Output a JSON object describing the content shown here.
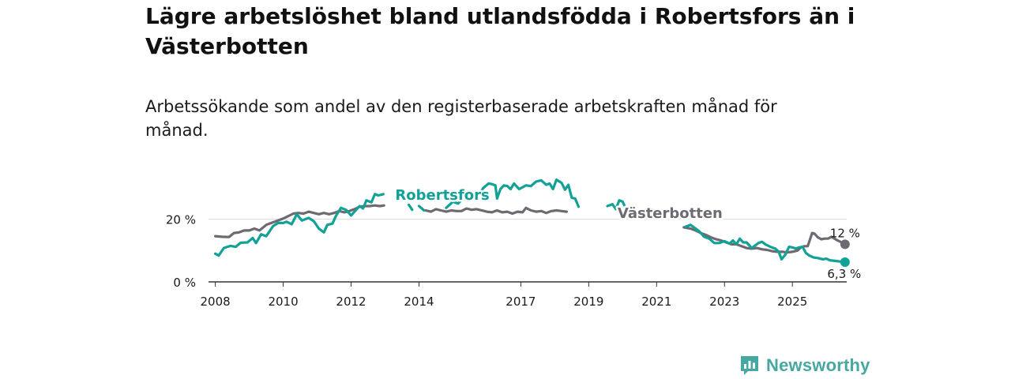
{
  "title": "Lägre arbetslöshet bland utlandsfödda i Robertsfors än i Västerbotten",
  "subtitle": "Arbetssökande som andel av den registerbaserade arbetskraften månad för månad.",
  "brand": {
    "name": "Newsworthy"
  },
  "colors": {
    "robertsfors": "#12a196",
    "vasterbotten": "#6f6a72",
    "grid": "#d9d9d9",
    "axis": "#333333",
    "text": "#1a1a1a"
  },
  "chart_data": {
    "type": "line",
    "title": "Lägre arbetslöshet bland utlandsfödda i Robertsfors än i Västerbotten",
    "subtitle": "Arbetssökande som andel av den registerbaserade arbetskraften månad för månad.",
    "xlabel": "",
    "ylabel": "",
    "xlim": [
      2007.8,
      2026.6
    ],
    "ylim": [
      0,
      32
    ],
    "y_ticks": [
      {
        "value": 0,
        "label": "0 %"
      },
      {
        "value": 20,
        "label": "20 %"
      }
    ],
    "x_ticks": [
      {
        "value": 2008,
        "label": "2008"
      },
      {
        "value": 2010,
        "label": "2010"
      },
      {
        "value": 2012,
        "label": "2012"
      },
      {
        "value": 2014,
        "label": "2014"
      },
      {
        "value": 2017,
        "label": "2017"
      },
      {
        "value": 2019,
        "label": "2019"
      },
      {
        "value": 2021,
        "label": "2021"
      },
      {
        "value": 2023,
        "label": "2023"
      },
      {
        "value": 2025,
        "label": "2025"
      }
    ],
    "series": [
      {
        "name": "Robertsfors",
        "color": "#12a196",
        "end_label": "6,3 %",
        "points": [
          [
            2008.0,
            9.0
          ],
          [
            2008.1,
            8.4
          ],
          [
            2008.25,
            10.8
          ],
          [
            2008.45,
            11.5
          ],
          [
            2008.6,
            11.2
          ],
          [
            2008.75,
            12.5
          ],
          [
            2008.95,
            12.6
          ],
          [
            2009.1,
            14.0
          ],
          [
            2009.2,
            12.4
          ],
          [
            2009.35,
            15.2
          ],
          [
            2009.5,
            14.6
          ],
          [
            2009.7,
            17.8
          ],
          [
            2009.85,
            18.8
          ],
          [
            2010.0,
            18.8
          ],
          [
            2010.1,
            19.2
          ],
          [
            2010.25,
            18.4
          ],
          [
            2010.4,
            21.6
          ],
          [
            2010.55,
            19.6
          ],
          [
            2010.75,
            20.4
          ],
          [
            2010.9,
            19.4
          ],
          [
            2011.05,
            17.0
          ],
          [
            2011.2,
            15.8
          ],
          [
            2011.3,
            18.2
          ],
          [
            2011.45,
            18.6
          ],
          [
            2011.55,
            21.0
          ],
          [
            2011.7,
            23.6
          ],
          [
            2011.85,
            23.0
          ],
          [
            2012.0,
            21.2
          ],
          [
            2012.1,
            22.4
          ],
          [
            2012.25,
            24.2
          ],
          [
            2012.35,
            23.4
          ],
          [
            2012.45,
            26.0
          ],
          [
            2012.6,
            25.4
          ],
          [
            2012.7,
            28.0
          ],
          [
            2012.8,
            27.6
          ],
          [
            2012.95,
            28.0
          ],
          null,
          [
            2013.7,
            24.6
          ],
          [
            2013.8,
            23.0
          ],
          null,
          [
            2014.0,
            24.2
          ],
          [
            2014.15,
            22.8
          ],
          null,
          [
            2014.8,
            23.6
          ],
          [
            2015.0,
            25.6
          ],
          [
            2015.15,
            25.0
          ],
          [
            2015.3,
            26.6
          ],
          [
            2015.45,
            26.2
          ],
          [
            2015.6,
            28.0
          ],
          [
            2015.75,
            27.8
          ],
          [
            2015.9,
            30.0
          ],
          [
            2016.05,
            31.4
          ],
          [
            2016.15,
            31.2
          ],
          [
            2016.25,
            30.8
          ],
          [
            2016.3,
            26.6
          ],
          [
            2016.4,
            29.6
          ],
          [
            2016.5,
            30.8
          ],
          [
            2016.6,
            30.6
          ],
          [
            2016.7,
            29.6
          ],
          [
            2016.8,
            31.4
          ],
          [
            2016.95,
            29.6
          ],
          [
            2017.05,
            30.2
          ],
          [
            2017.15,
            30.8
          ],
          [
            2017.3,
            30.6
          ],
          [
            2017.45,
            32.0
          ],
          [
            2017.6,
            32.4
          ],
          [
            2017.75,
            31.0
          ],
          [
            2017.85,
            31.4
          ],
          [
            2017.95,
            29.6
          ],
          [
            2018.05,
            32.6
          ],
          [
            2018.2,
            31.6
          ],
          [
            2018.3,
            29.4
          ],
          [
            2018.4,
            31.0
          ],
          [
            2018.5,
            26.8
          ],
          [
            2018.6,
            26.6
          ],
          [
            2018.7,
            24.0
          ],
          null,
          [
            2019.55,
            24.2
          ],
          [
            2019.7,
            24.8
          ],
          [
            2019.8,
            23.2
          ],
          [
            2019.9,
            26.0
          ],
          [
            2020.0,
            25.6
          ],
          [
            2020.05,
            24.4
          ],
          null,
          [
            2021.85,
            17.6
          ],
          [
            2022.0,
            18.2
          ],
          [
            2022.1,
            17.4
          ],
          [
            2022.25,
            16.2
          ],
          [
            2022.4,
            14.4
          ],
          [
            2022.55,
            13.8
          ],
          [
            2022.7,
            12.4
          ],
          [
            2022.85,
            12.4
          ],
          [
            2023.0,
            13.0
          ],
          [
            2023.15,
            12.2
          ],
          [
            2023.25,
            13.2
          ],
          [
            2023.35,
            12.0
          ],
          [
            2023.45,
            13.8
          ],
          [
            2023.55,
            12.6
          ],
          [
            2023.65,
            12.6
          ],
          [
            2023.8,
            10.8
          ],
          [
            2024.0,
            12.4
          ],
          [
            2024.1,
            12.8
          ],
          [
            2024.2,
            12.0
          ],
          [
            2024.35,
            11.2
          ],
          [
            2024.5,
            10.6
          ],
          [
            2024.6,
            9.6
          ],
          [
            2024.68,
            7.2
          ],
          [
            2024.8,
            8.8
          ],
          [
            2024.9,
            11.2
          ],
          [
            2025.0,
            11.0
          ],
          [
            2025.1,
            10.6
          ],
          [
            2025.2,
            11.0
          ],
          [
            2025.3,
            11.2
          ],
          [
            2025.4,
            9.2
          ],
          [
            2025.5,
            8.4
          ],
          [
            2025.62,
            7.8
          ],
          [
            2025.75,
            7.6
          ],
          [
            2025.9,
            7.2
          ],
          [
            2026.0,
            7.4
          ],
          [
            2026.1,
            6.9
          ],
          [
            2026.25,
            6.7
          ],
          [
            2026.4,
            6.5
          ],
          [
            2026.55,
            6.3
          ]
        ]
      },
      {
        "name": "Västerbotten",
        "color": "#6f6a72",
        "end_label": "12 %",
        "points": [
          [
            2008.0,
            14.6
          ],
          [
            2008.2,
            14.4
          ],
          [
            2008.4,
            14.3
          ],
          [
            2008.55,
            15.6
          ],
          [
            2008.7,
            15.8
          ],
          [
            2008.85,
            16.4
          ],
          [
            2009.0,
            16.4
          ],
          [
            2009.15,
            17.0
          ],
          [
            2009.3,
            16.4
          ],
          [
            2009.5,
            18.2
          ],
          [
            2009.65,
            18.8
          ],
          [
            2009.8,
            19.4
          ],
          [
            2010.0,
            20.2
          ],
          [
            2010.15,
            21.0
          ],
          [
            2010.3,
            21.8
          ],
          [
            2010.45,
            22.0
          ],
          [
            2010.6,
            21.8
          ],
          [
            2010.75,
            22.4
          ],
          [
            2010.9,
            22.0
          ],
          [
            2011.05,
            21.6
          ],
          [
            2011.2,
            22.0
          ],
          [
            2011.35,
            21.6
          ],
          [
            2011.5,
            22.0
          ],
          [
            2011.65,
            22.6
          ],
          [
            2011.8,
            22.2
          ],
          [
            2011.95,
            22.6
          ],
          [
            2012.1,
            23.2
          ],
          [
            2012.25,
            24.0
          ],
          [
            2012.4,
            24.2
          ],
          [
            2012.55,
            24.2
          ],
          [
            2012.7,
            24.4
          ],
          [
            2012.85,
            24.2
          ],
          [
            2012.97,
            24.4
          ],
          null,
          [
            2014.2,
            22.8
          ],
          [
            2014.35,
            22.4
          ],
          [
            2014.5,
            23.2
          ],
          [
            2014.65,
            22.8
          ],
          [
            2014.8,
            22.4
          ],
          [
            2014.95,
            22.8
          ],
          [
            2015.1,
            22.6
          ],
          [
            2015.25,
            22.6
          ],
          [
            2015.4,
            23.4
          ],
          [
            2015.55,
            23.0
          ],
          [
            2015.7,
            23.2
          ],
          [
            2015.85,
            22.8
          ],
          [
            2016.0,
            22.4
          ],
          [
            2016.15,
            22.2
          ],
          [
            2016.3,
            22.8
          ],
          [
            2016.45,
            22.2
          ],
          [
            2016.6,
            22.4
          ],
          [
            2016.75,
            21.8
          ],
          [
            2016.9,
            22.4
          ],
          [
            2017.05,
            22.2
          ],
          [
            2017.15,
            23.6
          ],
          [
            2017.3,
            22.8
          ],
          [
            2017.45,
            22.4
          ],
          [
            2017.6,
            22.6
          ],
          [
            2017.75,
            22.0
          ],
          [
            2017.9,
            22.6
          ],
          [
            2018.05,
            22.8
          ],
          [
            2018.2,
            22.6
          ],
          [
            2018.35,
            22.4
          ],
          null,
          [
            2021.8,
            17.4
          ],
          [
            2022.0,
            17.0
          ],
          [
            2022.15,
            16.4
          ],
          [
            2022.3,
            15.6
          ],
          [
            2022.45,
            15.0
          ],
          [
            2022.6,
            14.2
          ],
          [
            2022.75,
            13.6
          ],
          [
            2022.9,
            13.2
          ],
          [
            2023.05,
            12.6
          ],
          [
            2023.2,
            12.0
          ],
          [
            2023.35,
            12.0
          ],
          [
            2023.5,
            11.4
          ],
          [
            2023.65,
            10.8
          ],
          [
            2023.8,
            10.6
          ],
          [
            2023.95,
            10.8
          ],
          [
            2024.1,
            10.4
          ],
          [
            2024.25,
            10.2
          ],
          [
            2024.4,
            9.8
          ],
          [
            2024.55,
            9.6
          ],
          [
            2024.7,
            9.6
          ],
          [
            2024.85,
            9.4
          ],
          [
            2025.0,
            9.6
          ],
          [
            2025.15,
            10.0
          ],
          [
            2025.25,
            11.0
          ],
          [
            2025.35,
            11.4
          ],
          [
            2025.45,
            11.4
          ],
          [
            2025.52,
            13.6
          ],
          [
            2025.58,
            15.6
          ],
          [
            2025.65,
            15.4
          ],
          [
            2025.75,
            14.2
          ],
          [
            2025.85,
            13.6
          ],
          [
            2025.95,
            13.8
          ],
          [
            2026.05,
            13.8
          ],
          [
            2026.15,
            14.4
          ],
          [
            2026.3,
            13.4
          ],
          [
            2026.45,
            12.6
          ],
          [
            2026.55,
            12.0
          ]
        ]
      }
    ],
    "labels": [
      {
        "text": "Robertsfors",
        "series": "Robertsfors",
        "x": 2013.3,
        "y": 26.2
      },
      {
        "text": "Västerbotten",
        "series": "Västerbotten",
        "x": 2019.85,
        "y": 20.4
      }
    ]
  }
}
